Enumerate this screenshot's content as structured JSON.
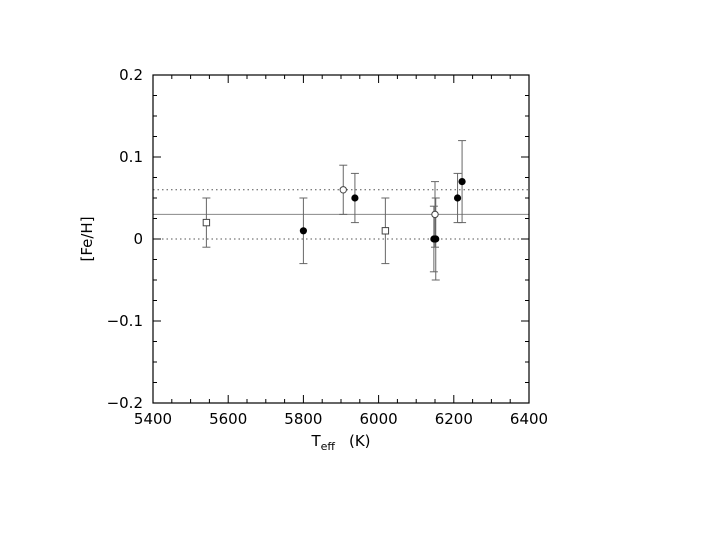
{
  "chart_data": {
    "type": "scatter",
    "xlabel": "T",
    "xlabel_sub": "eff",
    "xlabel_unit": "(K)",
    "ylabel": "[Fe/H]",
    "xlim": [
      5400,
      6400
    ],
    "ylim": [
      -0.2,
      0.2
    ],
    "x_ticks": [
      "5400",
      "5600",
      "5800",
      "6000",
      "6200",
      "6400"
    ],
    "y_ticks": [
      "−0.2",
      "−0.1",
      "0",
      "0.1",
      "0.2"
    ],
    "x_tick_values": [
      5400,
      5600,
      5800,
      6000,
      6200,
      6400
    ],
    "y_tick_values": [
      -0.2,
      -0.1,
      0,
      0.1,
      0.2
    ],
    "x_minor_step": 50,
    "y_minor_step": 0.025,
    "grid": false,
    "reference_lines": [
      {
        "y": 0.03,
        "style": "solid",
        "color": "#888888"
      },
      {
        "y": 0.06,
        "style": "dotted",
        "color": "#555555"
      },
      {
        "y": 0.0,
        "style": "dotted",
        "color": "#555555"
      }
    ],
    "series": [
      {
        "marker": "filled-circle",
        "points": [
          {
            "x": 5800,
            "y": 0.01,
            "err": 0.04
          },
          {
            "x": 5937,
            "y": 0.05,
            "err": 0.03
          },
          {
            "x": 6147,
            "y": 0.0,
            "err": 0.04
          },
          {
            "x": 6152,
            "y": 0.0,
            "err": 0.05
          },
          {
            "x": 6210,
            "y": 0.05,
            "err": 0.03
          },
          {
            "x": 6222,
            "y": 0.07,
            "err": 0.05
          }
        ]
      },
      {
        "marker": "open-circle",
        "points": [
          {
            "x": 5906,
            "y": 0.06,
            "err": 0.03
          },
          {
            "x": 6150,
            "y": 0.03,
            "err": 0.04
          }
        ]
      },
      {
        "marker": "open-square",
        "points": [
          {
            "x": 5542,
            "y": 0.02,
            "err": 0.03
          },
          {
            "x": 6018,
            "y": 0.01,
            "err": 0.04
          }
        ]
      }
    ]
  }
}
